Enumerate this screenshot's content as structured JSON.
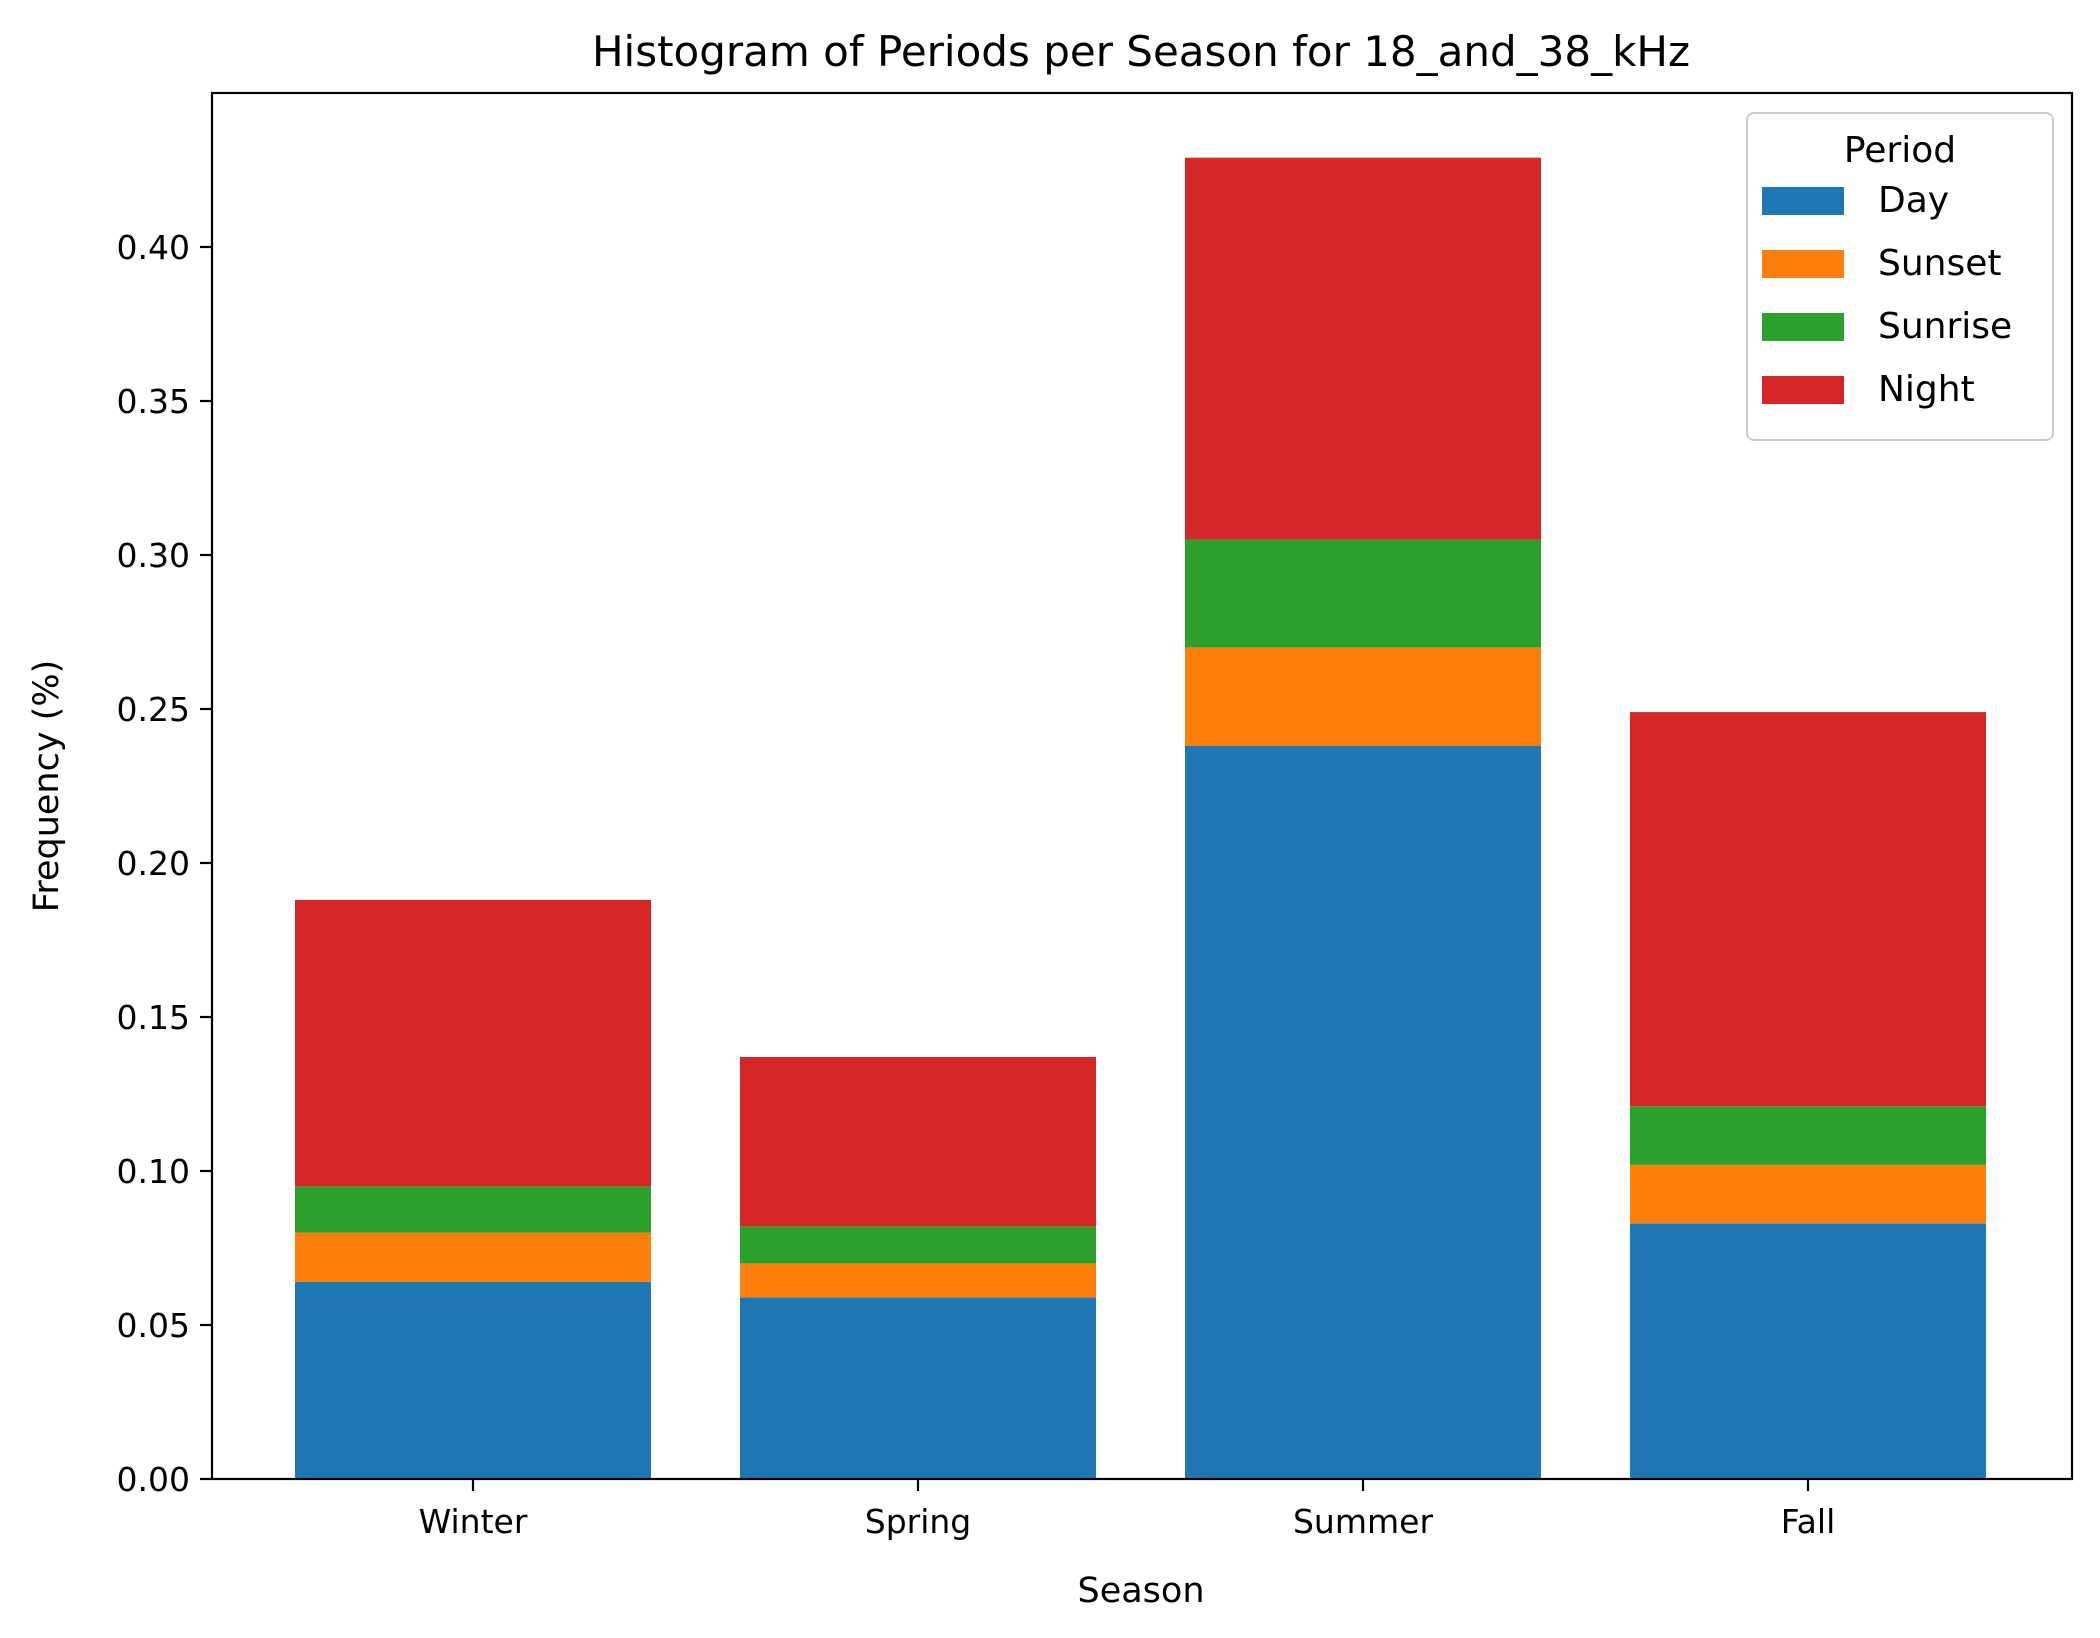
{
  "chart_data": {
    "type": "bar",
    "stacked": true,
    "title": "Histogram of Periods per Season for 18_and_38_kHz",
    "xlabel": "Season",
    "ylabel": "Frequency (%)",
    "categories": [
      "Winter",
      "Spring",
      "Summer",
      "Fall"
    ],
    "ylim": [
      0,
      0.45
    ],
    "yticks": [
      0.0,
      0.05,
      0.1,
      0.15,
      0.2,
      0.25,
      0.3,
      0.35,
      0.4
    ],
    "ytick_labels": [
      "0.00",
      "0.05",
      "0.10",
      "0.15",
      "0.20",
      "0.25",
      "0.30",
      "0.35",
      "0.40"
    ],
    "legend": {
      "title": "Period",
      "position": "upper right"
    },
    "grid": false,
    "series": [
      {
        "name": "Day",
        "color": "#1f77b4",
        "values": [
          0.064,
          0.059,
          0.238,
          0.083
        ]
      },
      {
        "name": "Sunset",
        "color": "#ff7f0e",
        "values": [
          0.016,
          0.011,
          0.032,
          0.019
        ]
      },
      {
        "name": "Sunrise",
        "color": "#2ca02c",
        "values": [
          0.015,
          0.012,
          0.035,
          0.019
        ]
      },
      {
        "name": "Night",
        "color": "#d62728",
        "values": [
          0.093,
          0.055,
          0.124,
          0.128
        ]
      }
    ]
  }
}
